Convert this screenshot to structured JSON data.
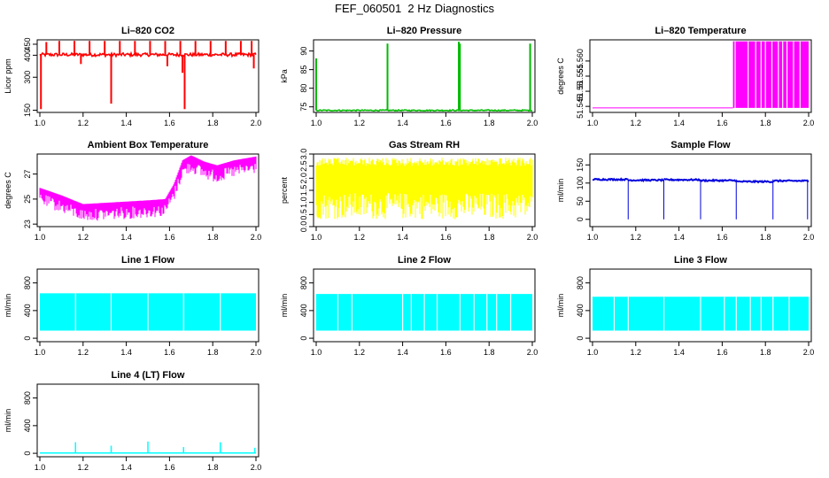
{
  "page_title": "FEF_060501  2 Hz Diagnostics",
  "chart_data": [
    {
      "type": "line",
      "title": "Li–820 CO2",
      "ylabel": "Licor ppm",
      "color": "#ff0000",
      "xlim": [
        1.0,
        2.0
      ],
      "ylim": [
        140,
        470
      ],
      "xticks": [
        "1.0",
        "1.2",
        "1.4",
        "1.6",
        "1.8",
        "2.0"
      ],
      "yticks": [
        {
          "v": 150,
          "t": "150"
        },
        {
          "v": 300,
          "t": "300"
        },
        {
          "v": 400,
          "t": "400"
        },
        {
          "v": 450,
          "t": "450"
        }
      ],
      "series": [
        {
          "band": {
            "low": 395,
            "high": 410
          },
          "spikes": [
            [
              1.03,
              460
            ],
            [
              1.09,
              465
            ],
            [
              1.16,
              465
            ],
            [
              1.23,
              465
            ],
            [
              1.3,
              465
            ],
            [
              1.37,
              465
            ],
            [
              1.44,
              465
            ],
            [
              1.51,
              465
            ],
            [
              1.58,
              465
            ],
            [
              1.65,
              465
            ],
            [
              1.72,
              465
            ],
            [
              1.79,
              465
            ],
            [
              1.86,
              465
            ],
            [
              1.93,
              465
            ],
            [
              1.98,
              465
            ],
            [
              1.005,
              155
            ],
            [
              1.33,
              180
            ],
            [
              1.67,
              155
            ],
            [
              1.66,
              320
            ],
            [
              1.19,
              360
            ],
            [
              1.59,
              350
            ],
            [
              1.99,
              340
            ]
          ]
        }
      ]
    },
    {
      "type": "line",
      "title": "Li–820 Pressure",
      "ylabel": "kPa",
      "color": "#00bb00",
      "xlim": [
        1.0,
        2.0
      ],
      "ylim": [
        73.5,
        93
      ],
      "xticks": [
        "1.0",
        "1.2",
        "1.4",
        "1.6",
        "1.8",
        "2.0"
      ],
      "yticks": [
        {
          "v": 75,
          "t": "75"
        },
        {
          "v": 80,
          "t": "80"
        },
        {
          "v": 85,
          "t": "85"
        },
        {
          "v": 90,
          "t": "90"
        }
      ],
      "series": [
        {
          "band": {
            "low": 73.9,
            "high": 74.2
          },
          "spikes": [
            [
              1.0,
              88
            ],
            [
              1.33,
              92
            ],
            [
              1.66,
              92.5
            ],
            [
              1.665,
              92
            ],
            [
              1.99,
              92
            ]
          ]
        }
      ]
    },
    {
      "type": "line",
      "title": "Li–820 Temperature",
      "ylabel": "degrees C",
      "color": "#ff00ff",
      "xlim": [
        1.0,
        2.0
      ],
      "ylim": [
        51.543,
        51.567
      ],
      "xticks": [
        "1.0",
        "1.2",
        "1.4",
        "1.6",
        "1.8",
        "2.0"
      ],
      "yticks": [
        {
          "v": 51.545,
          "t": "51.545"
        },
        {
          "v": 51.55,
          "t": "51.55"
        },
        {
          "v": 51.555,
          "t": "51.555"
        },
        {
          "v": 51.56,
          "t": "51.560"
        }
      ],
      "series": [
        {
          "baseline": 51.5445,
          "block": {
            "from": 1.65,
            "to": 2.0,
            "top": 51.5665
          }
        }
      ]
    },
    {
      "type": "line",
      "title": "Ambient Box Temperature",
      "ylabel": "degrees C",
      "color": "#ff00ff",
      "xlim": [
        1.0,
        2.0
      ],
      "ylim": [
        22.8,
        28.6
      ],
      "xticks": [
        "1.0",
        "1.2",
        "1.4",
        "1.6",
        "1.8",
        "2.0"
      ],
      "yticks": [
        {
          "v": 23,
          "t": "23"
        },
        {
          "v": 25,
          "t": "25"
        },
        {
          "v": 27,
          "t": "27"
        }
      ],
      "series": [
        {
          "profile": [
            [
              1.0,
              25.7
            ],
            [
              1.1,
              25.1
            ],
            [
              1.2,
              24.4
            ],
            [
              1.3,
              24.5
            ],
            [
              1.4,
              24.6
            ],
            [
              1.5,
              24.7
            ],
            [
              1.58,
              24.8
            ],
            [
              1.62,
              26
            ],
            [
              1.66,
              27.9
            ],
            [
              1.7,
              28.3
            ],
            [
              1.76,
              27.8
            ],
            [
              1.82,
              27.5
            ],
            [
              1.9,
              27.9
            ],
            [
              2.0,
              28.2
            ]
          ],
          "drop": 1.4
        }
      ]
    },
    {
      "type": "line",
      "title": "Gas Stream RH",
      "ylabel": "percent",
      "color": "#ffff00",
      "xlim": [
        1.0,
        2.0
      ],
      "ylim": [
        0,
        3.0
      ],
      "xticks": [
        "1.0",
        "1.2",
        "1.4",
        "1.6",
        "1.8",
        "2.0"
      ],
      "yticks": [
        {
          "v": 0,
          "t": "0.0"
        },
        {
          "v": 0.5,
          "t": "0.5"
        },
        {
          "v": 1,
          "t": "1.0"
        },
        {
          "v": 1.5,
          "t": "1.5"
        },
        {
          "v": 2,
          "t": "2.0"
        },
        {
          "v": 2.5,
          "t": "2.5"
        },
        {
          "v": 3,
          "t": "3.0"
        }
      ],
      "series": [
        {
          "noise": {
            "low": 0.3,
            "high": 2.85
          }
        }
      ]
    },
    {
      "type": "line",
      "title": "Sample Flow",
      "ylabel": "ml/min",
      "color": "#0000dd",
      "xlim": [
        1.0,
        2.0
      ],
      "ylim": [
        -20,
        180
      ],
      "xticks": [
        "1.0",
        "1.2",
        "1.4",
        "1.6",
        "1.8",
        "2.0"
      ],
      "yticks": [
        {
          "v": 0,
          "t": "0"
        },
        {
          "v": 50,
          "t": "50"
        },
        {
          "v": 100,
          "t": "100"
        },
        {
          "v": 150,
          "t": "150"
        }
      ],
      "series": [
        {
          "segments": [
            [
              1.0,
              1.165,
              110
            ],
            [
              1.165,
              1.33,
              108
            ],
            [
              1.33,
              1.5,
              109
            ],
            [
              1.5,
              1.665,
              107
            ],
            [
              1.665,
              1.835,
              104
            ],
            [
              1.835,
              2.0,
              106
            ]
          ],
          "dips": [
            1.165,
            1.33,
            1.5,
            1.665,
            1.835,
            1.995
          ]
        }
      ]
    },
    {
      "type": "line",
      "title": "Line 1 Flow",
      "ylabel": "ml/min",
      "color": "#00ffff",
      "xlim": [
        1.0,
        2.0
      ],
      "ylim": [
        -50,
        1000
      ],
      "xticks": [
        "1.0",
        "1.2",
        "1.4",
        "1.6",
        "1.8",
        "2.0"
      ],
      "yticks": [
        {
          "v": 0,
          "t": "0"
        },
        {
          "v": 400,
          "t": "400"
        },
        {
          "v": 800,
          "t": "800"
        }
      ],
      "series": [
        {
          "blockband": {
            "low": 110,
            "high": 650
          },
          "gaps": [
            1.165,
            1.33,
            1.5,
            1.665,
            1.835
          ]
        }
      ]
    },
    {
      "type": "line",
      "title": "Line 2 Flow",
      "ylabel": "ml/min",
      "color": "#00ffff",
      "xlim": [
        1.0,
        2.0
      ],
      "ylim": [
        -50,
        1000
      ],
      "xticks": [
        "1.0",
        "1.2",
        "1.4",
        "1.6",
        "1.8",
        "2.0"
      ],
      "yticks": [
        {
          "v": 0,
          "t": "0"
        },
        {
          "v": 400,
          "t": "400"
        },
        {
          "v": 800,
          "t": "800"
        }
      ],
      "series": [
        {
          "blockband": {
            "low": 110,
            "high": 640
          },
          "gaps": [
            1.1,
            1.165,
            1.4,
            1.44,
            1.5,
            1.56,
            1.665,
            1.73,
            1.79,
            1.835,
            1.9
          ]
        }
      ]
    },
    {
      "type": "line",
      "title": "Line 3 Flow",
      "ylabel": "ml/min",
      "color": "#00ffff",
      "xlim": [
        1.0,
        2.0
      ],
      "ylim": [
        -50,
        1000
      ],
      "xticks": [
        "1.0",
        "1.2",
        "1.4",
        "1.6",
        "1.8",
        "2.0"
      ],
      "yticks": [
        {
          "v": 0,
          "t": "0"
        },
        {
          "v": 400,
          "t": "400"
        },
        {
          "v": 800,
          "t": "800"
        }
      ],
      "series": [
        {
          "blockband": {
            "low": 110,
            "high": 600
          },
          "gaps": [
            1.1,
            1.165,
            1.33,
            1.5,
            1.61,
            1.665,
            1.73,
            1.78,
            1.835,
            1.91
          ]
        }
      ]
    },
    {
      "type": "line",
      "title": "Line 4 (LT) Flow",
      "ylabel": "ml/min",
      "color": "#00ffff",
      "xlim": [
        1.0,
        2.0
      ],
      "ylim": [
        -50,
        1000
      ],
      "xticks": [
        "1.0",
        "1.2",
        "1.4",
        "1.6",
        "1.8",
        "2.0"
      ],
      "yticks": [
        {
          "v": 0,
          "t": "0"
        },
        {
          "v": 400,
          "t": "400"
        },
        {
          "v": 800,
          "t": "800"
        }
      ],
      "series": [
        {
          "baseline": 5,
          "spikes": [
            [
              1.165,
              160
            ],
            [
              1.33,
              110
            ],
            [
              1.5,
              170
            ],
            [
              1.665,
              90
            ],
            [
              1.835,
              160
            ],
            [
              1.995,
              80
            ]
          ]
        }
      ]
    }
  ]
}
